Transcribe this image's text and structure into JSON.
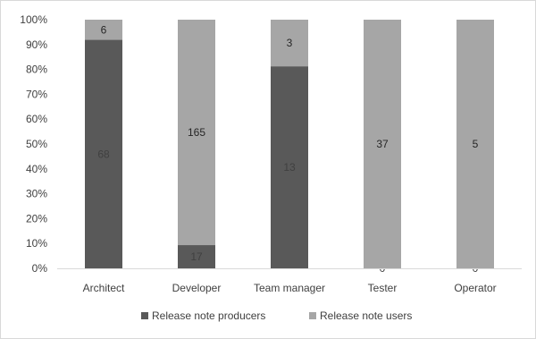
{
  "chart_data": {
    "type": "bar",
    "stacked": true,
    "normalized": true,
    "categories": [
      "Architect",
      "Developer",
      "Team manager",
      "Tester",
      "Operator"
    ],
    "series": [
      {
        "name": "Release note producers",
        "values": [
          68,
          17,
          13,
          0,
          0
        ],
        "color": "#595959",
        "label_color": "#404040"
      },
      {
        "name": "Release note users",
        "values": [
          6,
          165,
          3,
          37,
          5
        ],
        "color": "#a6a6a6",
        "label_color": "#262626"
      }
    ],
    "y_ticks": [
      "0%",
      "10%",
      "20%",
      "30%",
      "40%",
      "50%",
      "60%",
      "70%",
      "80%",
      "90%",
      "100%"
    ],
    "ylim": [
      0,
      100
    ],
    "grid": false,
    "legend": "bottom"
  }
}
